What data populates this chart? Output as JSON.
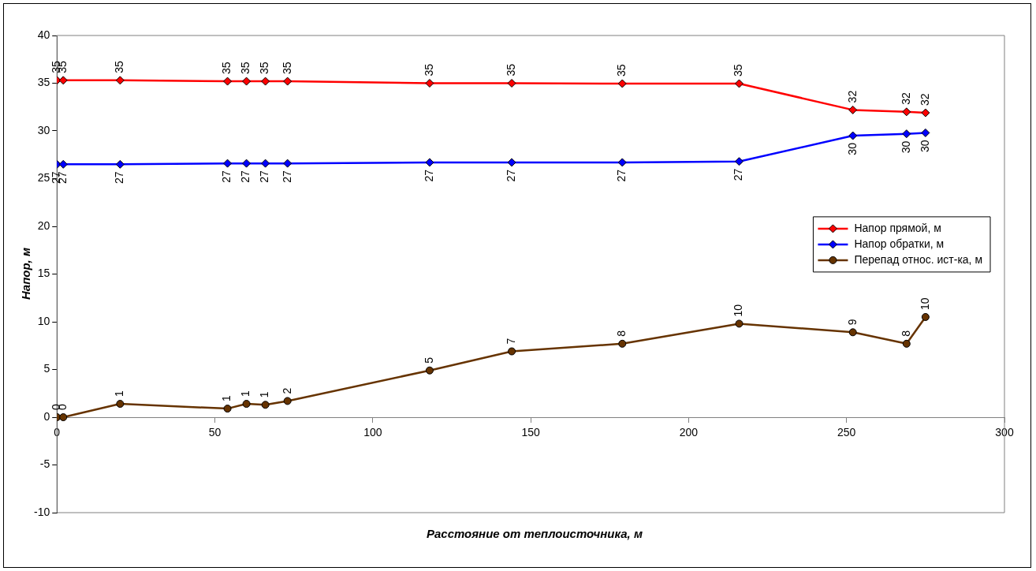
{
  "chart_data": {
    "type": "line",
    "xlabel": "Расстояние от теплоисточника, м",
    "ylabel": "Напор, м",
    "x": [
      0,
      2,
      20,
      54,
      60,
      66,
      73,
      118,
      144,
      179,
      216,
      252,
      269,
      275
    ],
    "xlim": [
      0,
      300
    ],
    "xticks": [
      0,
      50,
      100,
      150,
      200,
      250,
      300
    ],
    "ylim": [
      -10,
      40
    ],
    "yticks": [
      -10,
      -5,
      0,
      5,
      10,
      15,
      20,
      25,
      30,
      35,
      40
    ],
    "grid": false,
    "legend": "right",
    "line_style": "solid",
    "series": [
      {
        "name": "Напор прямой, м",
        "color": "#ff0000",
        "marker": "diamond",
        "values": [
          35.3,
          35.3,
          35.3,
          35.2,
          35.2,
          35.2,
          35.2,
          35.0,
          35.0,
          34.96,
          34.96,
          32.2,
          32.0,
          31.9
        ],
        "value_labels": [
          "35",
          "35",
          "35",
          "35",
          "35",
          "35",
          "35",
          "35",
          "35",
          "35",
          "35",
          "32",
          "32",
          "32"
        ]
      },
      {
        "name": "Напор обратки, м",
        "color": "#0000ff",
        "marker": "diamond",
        "values": [
          26.5,
          26.5,
          26.5,
          26.6,
          26.6,
          26.6,
          26.6,
          26.7,
          26.7,
          26.7,
          26.8,
          29.5,
          29.7,
          29.8
        ],
        "value_labels": [
          "27",
          "27",
          "27",
          "27",
          "27",
          "27",
          "27",
          "27",
          "27",
          "27",
          "27",
          "30",
          "30",
          "30"
        ]
      },
      {
        "name": "Перепад относ. ист-ка, м",
        "color": "#663300",
        "marker": "circle",
        "values": [
          0,
          0,
          1.4,
          0.9,
          1.4,
          1.3,
          1.7,
          4.9,
          6.9,
          7.7,
          9.8,
          8.9,
          7.7,
          10.5
        ],
        "value_labels": [
          "0",
          "0",
          "1",
          "1",
          "1",
          "1",
          "2",
          "5",
          "7",
          "8",
          "10",
          "9",
          "8",
          "10"
        ]
      }
    ]
  }
}
